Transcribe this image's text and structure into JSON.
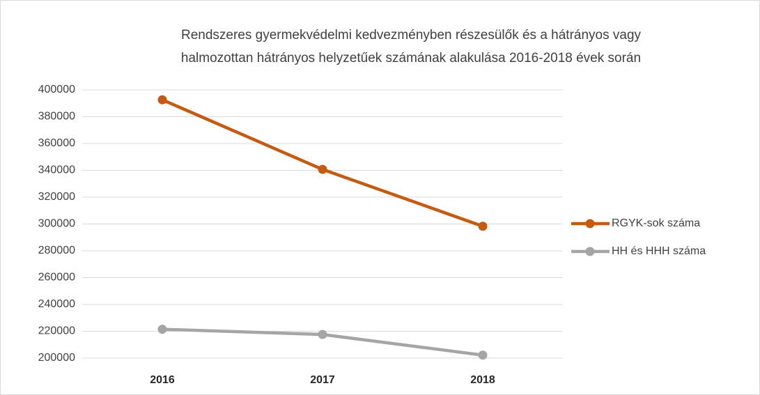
{
  "chart_data": {
    "type": "line",
    "title": [
      "Rendszeres gyermekvédelmi kedvezményben részesülők és a hátrányos vagy",
      "halmozottan hátrányos helyzetűek számának alakulása 2016-2018 évek során"
    ],
    "categories": [
      "2016",
      "2017",
      "2018"
    ],
    "series": [
      {
        "name": "RGYK-sok száma",
        "color": "#c55a11",
        "values": [
          392600,
          340700,
          298300
        ]
      },
      {
        "name": "HH és HHH száma",
        "color": "#a5a5a5",
        "values": [
          221500,
          217600,
          202200
        ]
      }
    ],
    "ylim": [
      200000,
      400000
    ],
    "yticks": [
      200000,
      220000,
      240000,
      260000,
      280000,
      300000,
      320000,
      340000,
      360000,
      380000,
      400000
    ],
    "grid": true,
    "legend": "right"
  }
}
